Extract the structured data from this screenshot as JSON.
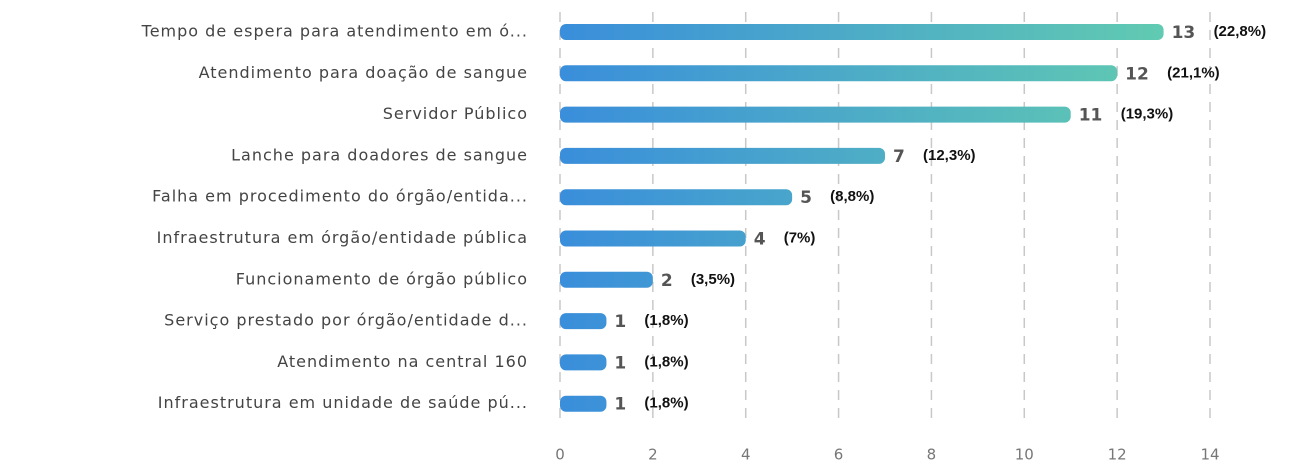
{
  "chart_data": {
    "type": "bar",
    "orientation": "horizontal",
    "categories": [
      "Tempo de espera para atendimento em ó...",
      "Atendimento para doação de sangue",
      "Servidor Público",
      "Lanche para doadores de sangue",
      "Falha em procedimento do órgão/entida...",
      "Infraestrutura em órgão/entidade pública",
      "Funcionamento de órgão público",
      "Serviço prestado por órgão/entidade d...",
      "Atendimento na central 160",
      "Infraestrutura em unidade de saúde pú..."
    ],
    "values": [
      13,
      12,
      11,
      7,
      5,
      4,
      2,
      1,
      1,
      1
    ],
    "percent_labels": [
      "(22,8%)",
      "(21,1%)",
      "(19,3%)",
      "(12,3%)",
      "(8,8%)",
      "(7%)",
      "(3,5%)",
      "(1,8%)",
      "(1,8%)",
      "(1,8%)"
    ],
    "gradient": [
      "#3a8edb",
      "#64cfae"
    ],
    "xlim": [
      0,
      14
    ],
    "xticks": [
      0,
      2,
      4,
      6,
      8,
      10,
      12,
      14
    ],
    "grid": true
  }
}
